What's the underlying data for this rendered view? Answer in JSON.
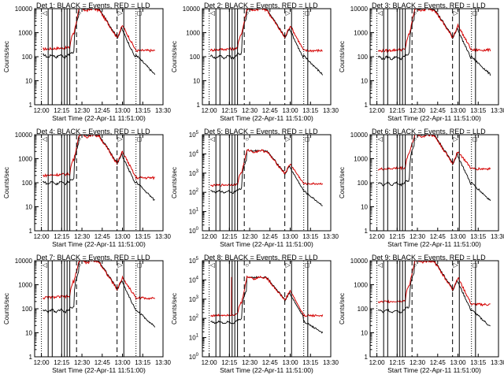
{
  "colors": {
    "events": "#000000",
    "lld": "#d40000",
    "axis": "#000000",
    "background": "#ffffff"
  },
  "common": {
    "xlabel": "Start Time (22-Apr-11 11:51:00)",
    "ylabel": "Counts/sec",
    "x_ticks": [
      "12:00",
      "12:15",
      "12:30",
      "12:45",
      "13:00",
      "13:15",
      "13:30"
    ],
    "x_tick_minutes": [
      0,
      15,
      30,
      45,
      60,
      75,
      90
    ],
    "xlim_minutes_after_1200": [
      -5,
      90
    ],
    "ylim_linear_labels": [
      1,
      10000
    ],
    "linear_y_ticks": [
      "1",
      "10",
      "100",
      "1000",
      "10000"
    ],
    "power_y_ticks": [
      {
        "base": "10",
        "exp": "0"
      },
      {
        "base": "10",
        "exp": "1"
      },
      {
        "base": "10",
        "exp": "2"
      },
      {
        "base": "10",
        "exp": "3"
      },
      {
        "base": "10",
        "exp": "4"
      },
      {
        "base": "10",
        "exp": "5"
      }
    ],
    "solid_vlines_min": [
      5,
      8,
      15,
      17,
      19,
      21,
      61,
      73
    ],
    "dashed_vlines_min": [
      26,
      56
    ],
    "dotted_vlines_min": [
      0,
      70
    ],
    "top_markers": [
      {
        "min": 0,
        "symbol": "◁"
      },
      {
        "min": 26,
        "symbol": "○"
      },
      {
        "min": 56,
        "symbol": "▷"
      },
      {
        "min": 70,
        "symbol": "◻"
      }
    ]
  },
  "chart_data": [
    {
      "type": "line",
      "title": "Det 1: BLACK = Events, RED = LLD",
      "yscale": "log",
      "ylim": [
        1,
        10000
      ],
      "tick_style": "linear",
      "lld_plateau": 10000,
      "lld_base": 240,
      "event_base": 120,
      "lld_end": 180,
      "event_end": 18,
      "spike_lld": null
    },
    {
      "type": "line",
      "title": "Det 2: BLACK = Events, RED = LLD",
      "yscale": "log",
      "ylim": [
        1,
        10000
      ],
      "tick_style": "linear",
      "lld_plateau": 10000,
      "lld_base": 220,
      "event_base": 110,
      "lld_end": 180,
      "event_end": 18,
      "spike_lld": null
    },
    {
      "type": "line",
      "title": "Det 3: BLACK = Events, RED = LLD",
      "yscale": "log",
      "ylim": [
        1,
        10000
      ],
      "tick_style": "linear",
      "lld_plateau": 10000,
      "lld_base": 200,
      "event_base": 100,
      "lld_end": 190,
      "event_end": 18,
      "spike_lld": null
    },
    {
      "type": "line",
      "title": "Det 4: BLACK = Events, RED = LLD",
      "yscale": "log",
      "ylim": [
        1,
        10000
      ],
      "tick_style": "linear",
      "lld_plateau": 10000,
      "lld_base": 230,
      "event_base": 110,
      "lld_end": 160,
      "event_end": 18,
      "spike_lld": null
    },
    {
      "type": "line",
      "title": "Det 5: BLACK = Events, RED = LLD",
      "yscale": "log",
      "ylim": [
        1,
        100000
      ],
      "tick_style": "power",
      "lld_plateau": 15000,
      "lld_base": 260,
      "event_base": 120,
      "lld_end": 280,
      "event_end": 20,
      "spike_lld": null
    },
    {
      "type": "line",
      "title": "Det 6: BLACK = Events, RED = LLD",
      "yscale": "log",
      "ylim": [
        1,
        10000
      ],
      "tick_style": "linear",
      "lld_plateau": 10000,
      "lld_base": 420,
      "event_base": 100,
      "lld_end": 380,
      "event_end": 18,
      "spike_lld": null
    },
    {
      "type": "line",
      "title": "Det 7: BLACK = Events, RED = LLD",
      "yscale": "log",
      "ylim": [
        1,
        10000
      ],
      "tick_style": "linear",
      "lld_plateau": 10000,
      "lld_base": 330,
      "event_base": 90,
      "lld_end": 280,
      "event_end": 18,
      "spike_lld": null
    },
    {
      "type": "line",
      "title": "Det 8: BLACK = Events, RED = LLD",
      "yscale": "log",
      "ylim": [
        1,
        100000
      ],
      "tick_style": "power",
      "lld_plateau": 14000,
      "lld_base": 160,
      "event_base": 70,
      "lld_end": 140,
      "event_end": 18,
      "spike_lld": 14000
    },
    {
      "type": "line",
      "title": "Det 9: BLACK = Events, RED = LLD",
      "yscale": "log",
      "ylim": [
        1,
        10000
      ],
      "tick_style": "linear",
      "lld_plateau": 10000,
      "lld_base": 220,
      "event_base": 90,
      "lld_end": 150,
      "event_end": 18,
      "spike_lld": null
    }
  ]
}
